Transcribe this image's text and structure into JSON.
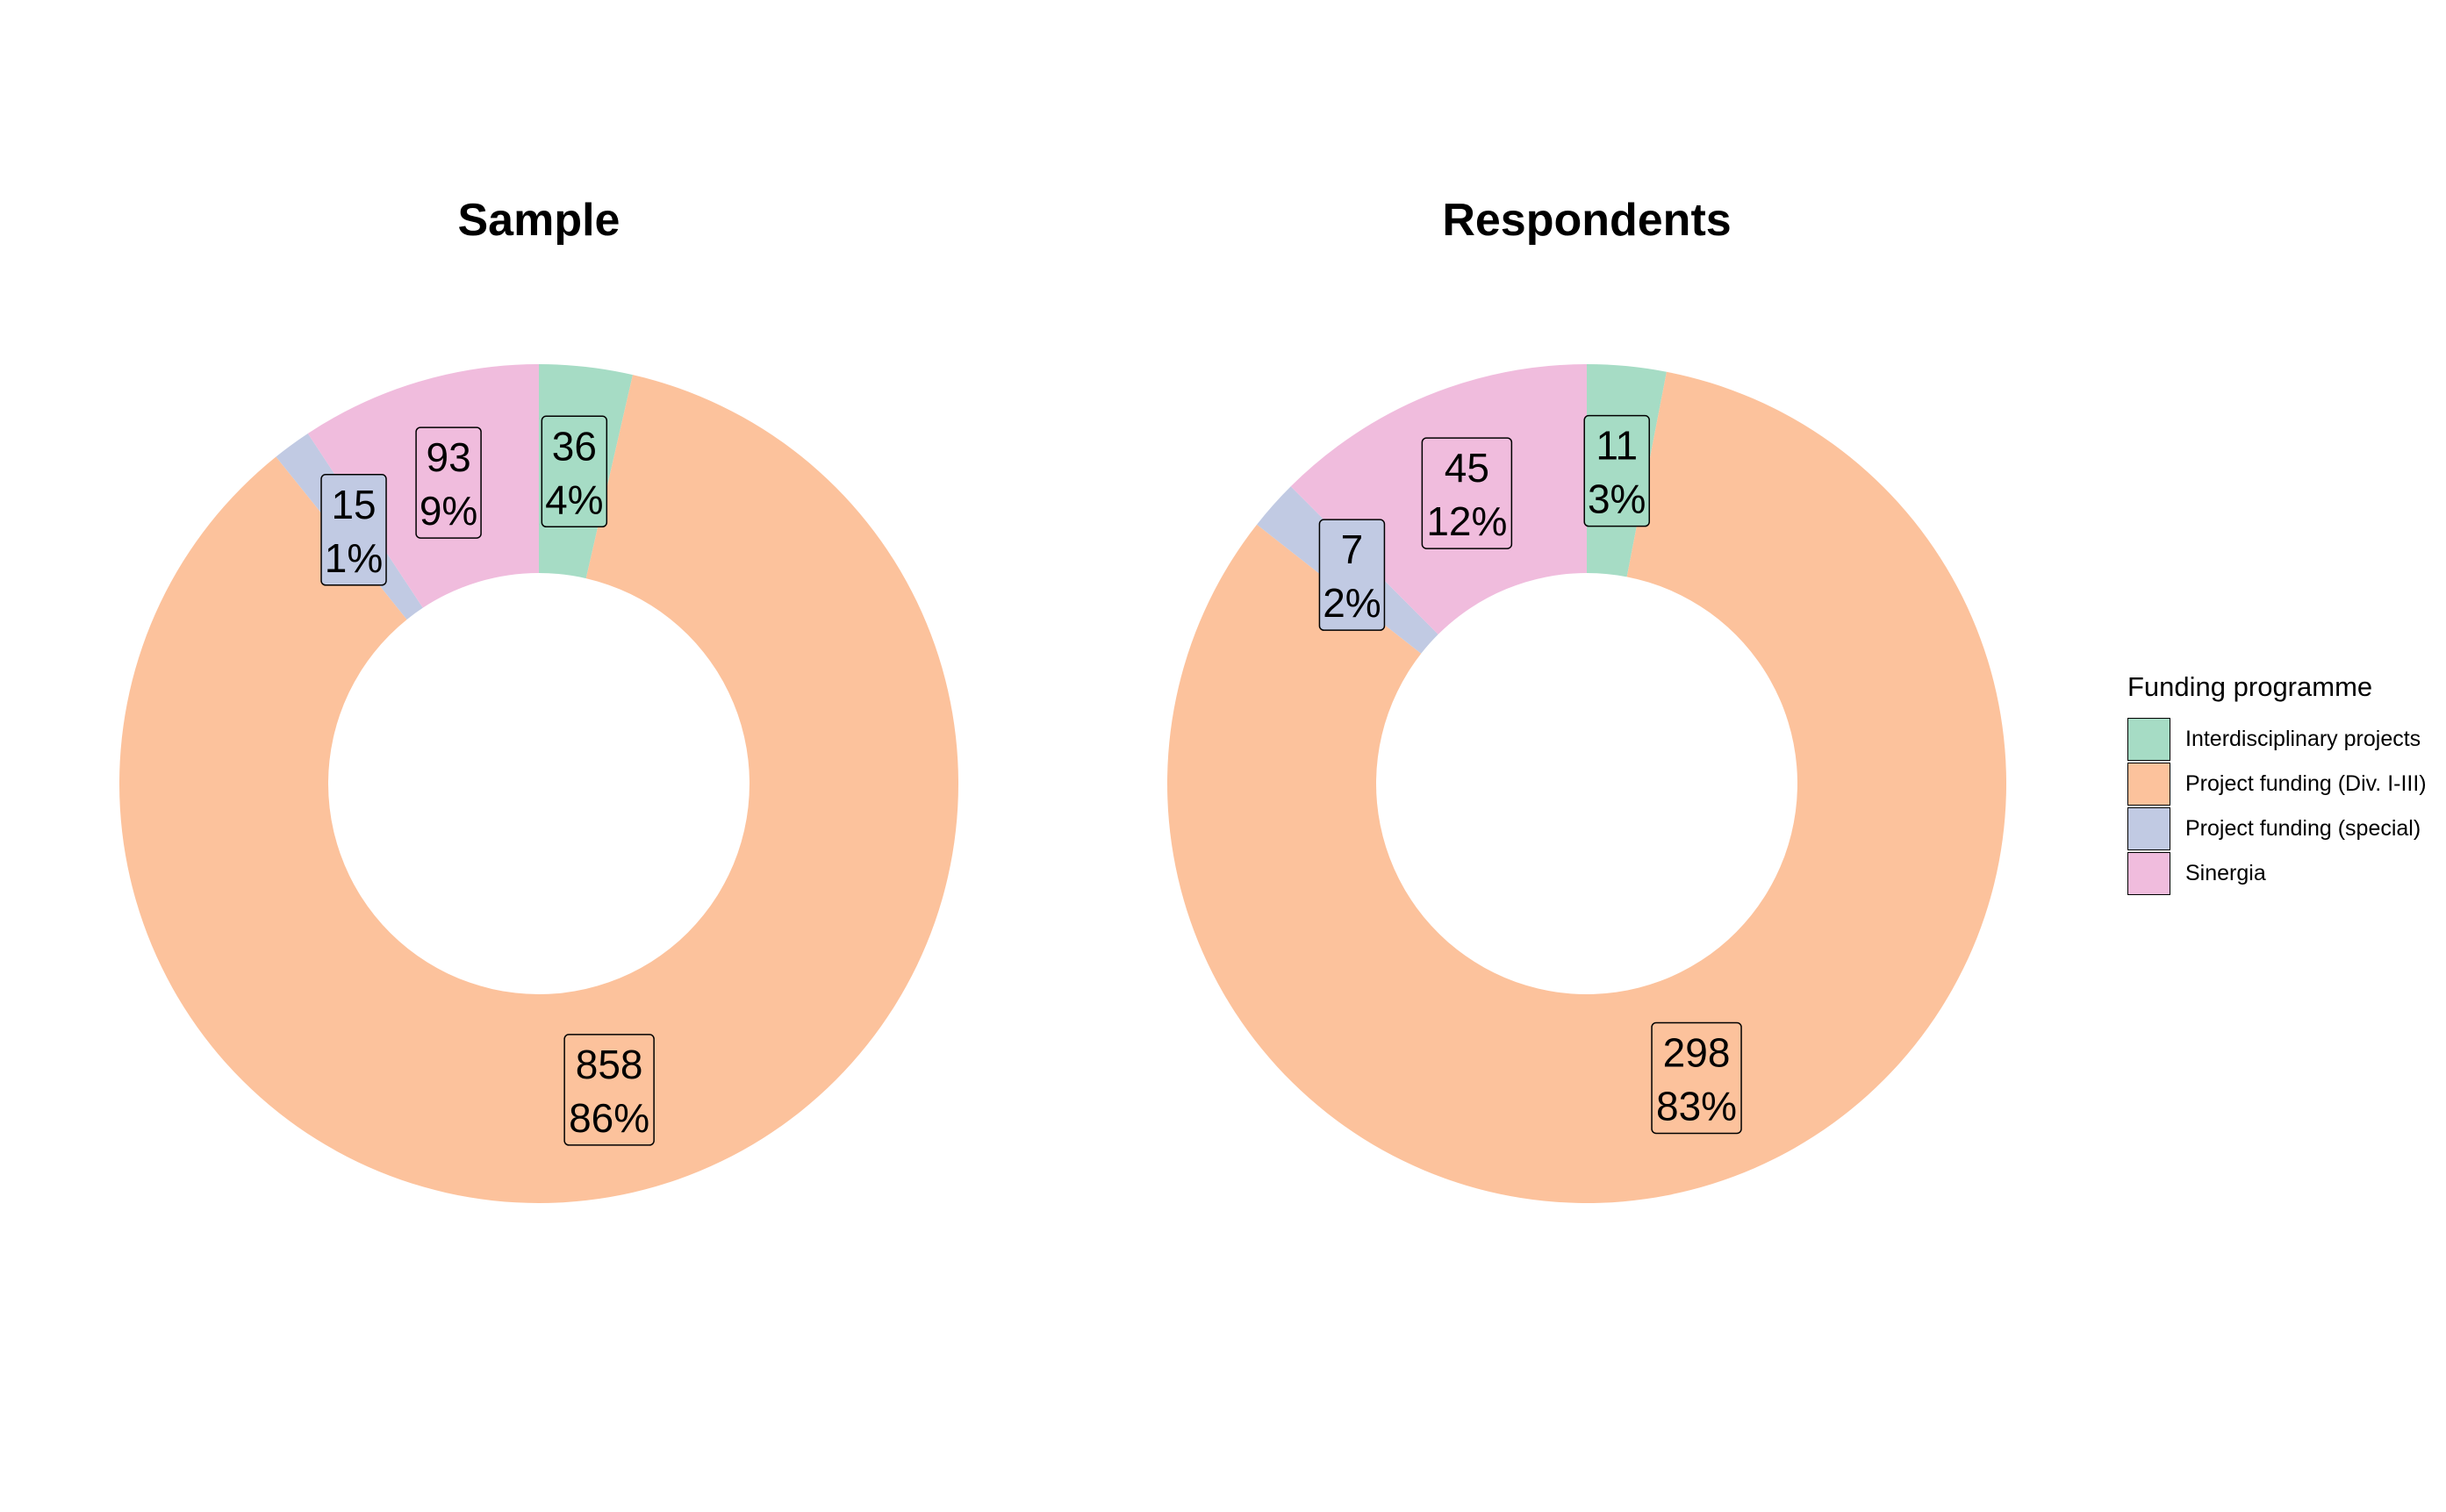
{
  "legend": {
    "title": "Funding programme",
    "entries": [
      {
        "label": "Interdisciplinary projects",
        "color": "#a6dcc5"
      },
      {
        "label": "Project funding (Div. I-III)",
        "color": "#fcc29c"
      },
      {
        "label": "Project funding (special)",
        "color": "#c1cae3"
      },
      {
        "label": "Sinergia",
        "color": "#f0bcdd"
      }
    ]
  },
  "chart_data": [
    {
      "type": "pie",
      "variant": "donut",
      "title": "Sample",
      "categories": [
        "Interdisciplinary projects",
        "Project funding (Div. I-III)",
        "Project funding (special)",
        "Sinergia"
      ],
      "values": [
        36,
        858,
        15,
        93
      ],
      "percent_labels": [
        "4%",
        "86%",
        "1%",
        "9%"
      ]
    },
    {
      "type": "pie",
      "variant": "donut",
      "title": "Respondents",
      "categories": [
        "Interdisciplinary projects",
        "Project funding (Div. I-III)",
        "Project funding (special)",
        "Sinergia"
      ],
      "values": [
        11,
        298,
        7,
        45
      ],
      "percent_labels": [
        "3%",
        "83%",
        "2%",
        "12%"
      ]
    }
  ]
}
